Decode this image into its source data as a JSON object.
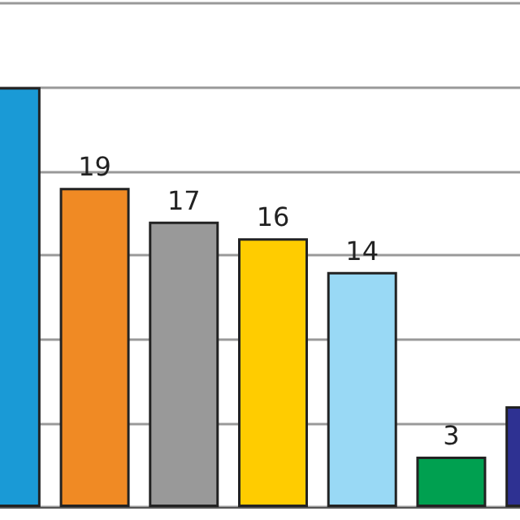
{
  "chart_data": {
    "type": "bar",
    "categories": [
      null,
      null,
      null,
      null,
      null,
      null,
      null
    ],
    "values": [
      25,
      19,
      17,
      16,
      14,
      3,
      6
    ],
    "colors": [
      "#1a9ad6",
      "#f08a24",
      "#999999",
      "#ffcc00",
      "#99d9f5",
      "#00a050",
      "#2e3192"
    ],
    "value_labels": [
      null,
      "19",
      "17",
      "16",
      "14",
      "3",
      null
    ],
    "ylim": [
      0,
      30
    ],
    "yticks": [
      {
        "value": 0,
        "label": null
      },
      {
        "value": 5,
        "label": null
      },
      {
        "value": 10,
        "label": null
      },
      {
        "value": 15,
        "label": null
      },
      {
        "value": 20,
        "label": null
      },
      {
        "value": 25,
        "label": null
      },
      {
        "value": 30,
        "label": null
      }
    ],
    "grid": "y"
  }
}
